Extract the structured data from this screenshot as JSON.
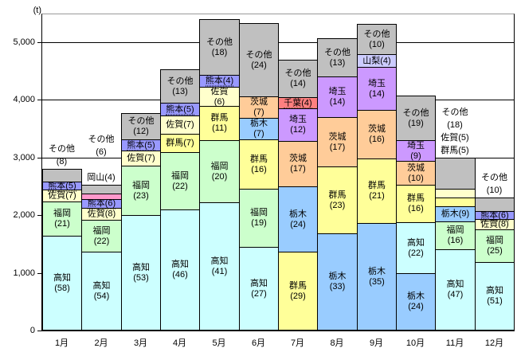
{
  "chart_data": {
    "type": "bar",
    "stacked": true,
    "title": "",
    "unit_label": "(t)",
    "xlabel": "",
    "ylabel": "(t)",
    "ylim": [
      0,
      5480
    ],
    "grid": true,
    "legend_position": "none",
    "value_semantics": "numbers in parentheses are percent shares of each monthly total; bar heights are tons",
    "yticks": [
      {
        "value": 0,
        "label": "0"
      },
      {
        "value": 1000,
        "label": "1,000"
      },
      {
        "value": 2000,
        "label": "2,000"
      },
      {
        "value": 3000,
        "label": "3,000"
      },
      {
        "value": 4000,
        "label": "4,000"
      },
      {
        "value": 5000,
        "label": "5,000"
      }
    ],
    "colors": {
      "高知": "#ccffff",
      "福岡": "#ccffcc",
      "佐賀": "#ffffcc",
      "熊本": "#9999ff",
      "群馬": "#ffff99",
      "栃木": "#99ccff",
      "茨城": "#ffcc99",
      "埼玉": "#cc99ff",
      "千葉": "#ff8080",
      "山梨": "#ccccff",
      "岡山": "#ff99cc",
      "その他": "#c0c0c0"
    },
    "categories": [
      "1月",
      "2月",
      "3月",
      "4月",
      "5月",
      "6月",
      "7月",
      "8月",
      "9月",
      "10月",
      "11月",
      "12月"
    ],
    "months": [
      {
        "label": "1月",
        "total_t": 2820,
        "segments": [
          {
            "name": "高知",
            "pct": 58,
            "label_lines": 2
          },
          {
            "name": "福岡",
            "pct": 21,
            "label_lines": 2
          },
          {
            "name": "佐賀",
            "pct": 7,
            "label_lines": 1
          },
          {
            "name": "熊本",
            "pct": 5,
            "label_lines": 1,
            "underline": true
          },
          {
            "name": "その他",
            "pct": 8,
            "label_lines": 0
          }
        ],
        "callouts": [
          "その他",
          "(8)"
        ]
      },
      {
        "label": "2月",
        "total_t": 2510,
        "segments": [
          {
            "name": "高知",
            "pct": 54,
            "label_lines": 2
          },
          {
            "name": "福岡",
            "pct": 22,
            "label_lines": 2
          },
          {
            "name": "佐賀",
            "pct": 8,
            "label_lines": 1
          },
          {
            "name": "熊本",
            "pct": 6,
            "label_lines": 1,
            "underline": true
          },
          {
            "name": "岡山",
            "pct": 4,
            "label_lines": 0
          },
          {
            "name": "その他",
            "pct": 6,
            "label_lines": 0
          }
        ],
        "callouts": [
          "その他",
          "(6)",
          "",
          "岡山(4)"
        ]
      },
      {
        "label": "3月",
        "total_t": 3750,
        "segments": [
          {
            "name": "高知",
            "pct": 53,
            "label_lines": 2
          },
          {
            "name": "福岡",
            "pct": 23,
            "label_lines": 2
          },
          {
            "name": "佐賀",
            "pct": 7,
            "label_lines": 1
          },
          {
            "name": "熊本",
            "pct": 5,
            "label_lines": 1,
            "underline": true
          },
          {
            "name": "その他",
            "pct": 12,
            "label_lines": 2
          }
        ]
      },
      {
        "label": "4月",
        "total_t": 4520,
        "segments": [
          {
            "name": "高知",
            "pct": 46,
            "label_lines": 2
          },
          {
            "name": "福岡",
            "pct": 22,
            "label_lines": 2
          },
          {
            "name": "群馬",
            "pct": 7,
            "label_lines": 1
          },
          {
            "name": "佐賀",
            "pct": 7,
            "label_lines": 1
          },
          {
            "name": "熊本",
            "pct": 5,
            "label_lines": 1,
            "underline": true
          },
          {
            "name": "その他",
            "pct": 13,
            "label_lines": 2
          }
        ]
      },
      {
        "label": "5月",
        "total_t": 5390,
        "segments": [
          {
            "name": "高知",
            "pct": 41,
            "label_lines": 2
          },
          {
            "name": "福岡",
            "pct": 20,
            "label_lines": 2
          },
          {
            "name": "群馬",
            "pct": 11,
            "label_lines": 2
          },
          {
            "name": "佐賀",
            "pct": 6,
            "label_lines": 2
          },
          {
            "name": "熊本",
            "pct": 4,
            "label_lines": 1,
            "underline": true
          },
          {
            "name": "その他",
            "pct": 18,
            "label_lines": 2
          }
        ]
      },
      {
        "label": "6月",
        "total_t": 5320,
        "segments": [
          {
            "name": "高知",
            "pct": 27,
            "label_lines": 2
          },
          {
            "name": "福岡",
            "pct": 19,
            "label_lines": 2
          },
          {
            "name": "群馬",
            "pct": 16,
            "label_lines": 2
          },
          {
            "name": "栃木",
            "pct": 7,
            "label_lines": 2
          },
          {
            "name": "茨城",
            "pct": 7,
            "label_lines": 2
          },
          {
            "name": "その他",
            "pct": 24,
            "label_lines": 2
          }
        ]
      },
      {
        "label": "7月",
        "total_t": 4680,
        "segments": [
          {
            "name": "群馬",
            "pct": 29,
            "label_lines": 2
          },
          {
            "name": "栃木",
            "pct": 24,
            "label_lines": 2
          },
          {
            "name": "茨城",
            "pct": 17,
            "label_lines": 2
          },
          {
            "name": "埼玉",
            "pct": 12,
            "label_lines": 2
          },
          {
            "name": "千葉",
            "pct": 4,
            "label_lines": 1,
            "underline": true
          },
          {
            "name": "その他",
            "pct": 14,
            "label_lines": 2
          }
        ]
      },
      {
        "label": "8月",
        "total_t": 5050,
        "segments": [
          {
            "name": "栃木",
            "pct": 33,
            "label_lines": 2
          },
          {
            "name": "群馬",
            "pct": 23,
            "label_lines": 2
          },
          {
            "name": "茨城",
            "pct": 17,
            "label_lines": 2
          },
          {
            "name": "埼玉",
            "pct": 14,
            "label_lines": 2
          },
          {
            "name": "その他",
            "pct": 13,
            "label_lines": 2
          }
        ]
      },
      {
        "label": "9月",
        "total_t": 5300,
        "segments": [
          {
            "name": "栃木",
            "pct": 35,
            "label_lines": 2
          },
          {
            "name": "群馬",
            "pct": 21,
            "label_lines": 2
          },
          {
            "name": "茨城",
            "pct": 16,
            "label_lines": 2
          },
          {
            "name": "埼玉",
            "pct": 14,
            "label_lines": 2
          },
          {
            "name": "山梨",
            "pct": 4,
            "label_lines": 1
          },
          {
            "name": "その他",
            "pct": 10,
            "label_lines": 2
          }
        ]
      },
      {
        "label": "10月",
        "total_t": 4060,
        "segments": [
          {
            "name": "栃木",
            "pct": 24,
            "label_lines": 2
          },
          {
            "name": "高知",
            "pct": 22,
            "label_lines": 2
          },
          {
            "name": "群馬",
            "pct": 16,
            "label_lines": 2
          },
          {
            "name": "茨城",
            "pct": 10,
            "label_lines": 2
          },
          {
            "name": "埼玉",
            "pct": 9,
            "label_lines": 2
          },
          {
            "name": "その他",
            "pct": 19,
            "label_lines": 2
          }
        ]
      },
      {
        "label": "11月",
        "total_t": 2980,
        "segments": [
          {
            "name": "高知",
            "pct": 47,
            "label_lines": 2
          },
          {
            "name": "福岡",
            "pct": 16,
            "label_lines": 2
          },
          {
            "name": "栃木",
            "pct": 9,
            "label_lines": 1
          },
          {
            "name": "群馬",
            "pct": 5,
            "label_lines": 0
          },
          {
            "name": "佐賀",
            "pct": 5,
            "label_lines": 0
          },
          {
            "name": "その他",
            "pct": 18,
            "label_lines": 0
          }
        ],
        "callouts": [
          "その他",
          "(18)",
          "佐賀(5)",
          "群馬(5)"
        ]
      },
      {
        "label": "12月",
        "total_t": 2290,
        "segments": [
          {
            "name": "高知",
            "pct": 51,
            "label_lines": 2
          },
          {
            "name": "福岡",
            "pct": 25,
            "label_lines": 2
          },
          {
            "name": "佐賀",
            "pct": 8,
            "label_lines": 1
          },
          {
            "name": "熊本",
            "pct": 6,
            "label_lines": 1,
            "underline": true
          },
          {
            "name": "その他",
            "pct": 10,
            "label_lines": 0
          }
        ],
        "callouts": [
          "その他",
          "(10)"
        ]
      }
    ]
  }
}
